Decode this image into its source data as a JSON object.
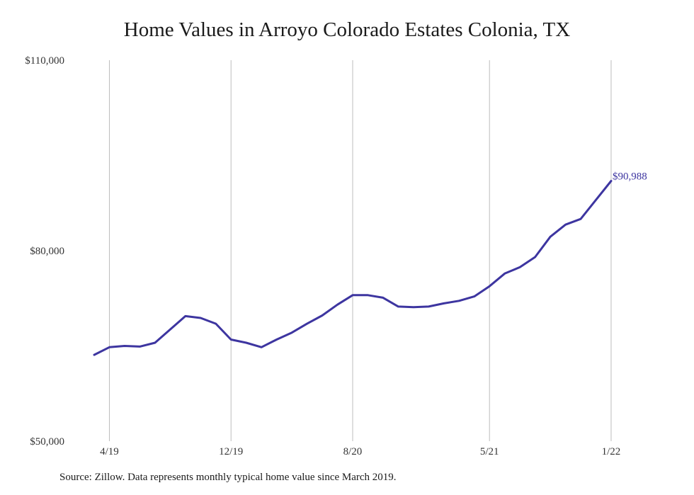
{
  "chart_data": {
    "type": "line",
    "title": "Home Values in Arroyo Colorado Estates Colonia, TX",
    "xlabel": "",
    "ylabel": "",
    "ylim": [
      50000,
      110000
    ],
    "y_ticks": [
      "$110,000",
      "$80,000",
      "$50,000"
    ],
    "y_tick_values": [
      110000,
      80000,
      50000
    ],
    "x_ticks": [
      "4/19",
      "12/19",
      "8/20",
      "5/21",
      "1/22"
    ],
    "x_tick_index": [
      1,
      9,
      17,
      26,
      34
    ],
    "grid": "vertical lines at x ticks",
    "line_color": "#3d35a0",
    "end_label": "$90,988",
    "series": [
      {
        "values": [
          63600,
          64800,
          65000,
          64900,
          65500,
          67600,
          69700,
          69400,
          68500,
          66000,
          65500,
          64800,
          66000,
          67100,
          68500,
          69800,
          71500,
          73000,
          73000,
          72600,
          71200,
          71100,
          71200,
          71700,
          72100,
          72800,
          74400,
          76400,
          77400,
          79000,
          82200,
          84100,
          85000,
          88000,
          90988
        ]
      }
    ]
  },
  "source": "Source: Zillow. Data represents monthly typical home value since March 2019."
}
